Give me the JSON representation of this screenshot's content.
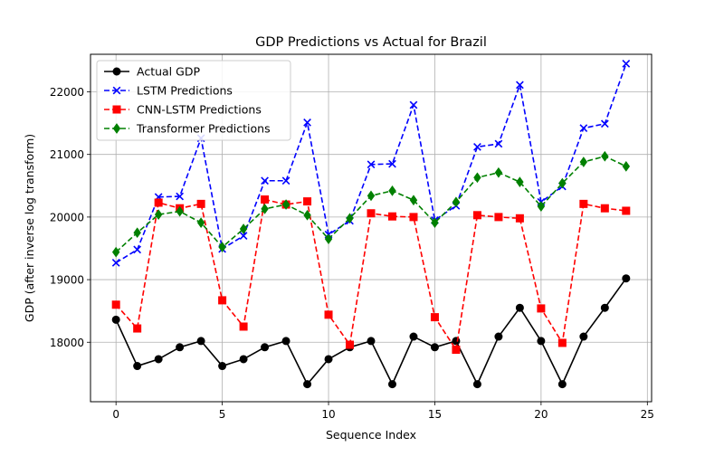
{
  "chart_data": {
    "type": "line",
    "title": "GDP Predictions vs Actual for Brazil",
    "xlabel": "Sequence Index",
    "ylabel": "GDP (after inverse log transform)",
    "xlim": [
      -1.2,
      25.2
    ],
    "ylim": [
      17050,
      22600
    ],
    "xticks": [
      0,
      5,
      10,
      15,
      20,
      25
    ],
    "yticks": [
      18000,
      19000,
      20000,
      21000,
      22000
    ],
    "grid": true,
    "legend_position": "top-left",
    "x": [
      0,
      1,
      2,
      3,
      4,
      5,
      6,
      7,
      8,
      9,
      10,
      11,
      12,
      13,
      14,
      15,
      16,
      17,
      18,
      19,
      20,
      21,
      22,
      23,
      24
    ],
    "series": [
      {
        "name": "Actual GDP",
        "color": "#000000",
        "marker": "circle",
        "line_style": "solid",
        "values": [
          18360,
          17620,
          17730,
          17920,
          18020,
          17620,
          17730,
          17920,
          18020,
          17330,
          17730,
          17920,
          18020,
          17330,
          18090,
          17920,
          18020,
          17330,
          18090,
          18550,
          18020,
          17330,
          18090,
          18550,
          19020
        ]
      },
      {
        "name": "LSTM Predictions",
        "color": "#0000ff",
        "marker": "x",
        "line_style": "dashed",
        "values": [
          19270,
          19480,
          20320,
          20330,
          21260,
          19490,
          19700,
          20580,
          20580,
          21510,
          19720,
          19940,
          20840,
          20850,
          21790,
          19950,
          20180,
          21120,
          21170,
          22110,
          20240,
          20490,
          21420,
          21490,
          22450
        ]
      },
      {
        "name": "CNN-LSTM Predictions",
        "color": "#ff0000",
        "marker": "square",
        "line_style": "dashed",
        "values": [
          18600,
          18220,
          20230,
          20140,
          20210,
          18670,
          18250,
          20280,
          20200,
          20250,
          18440,
          17960,
          20060,
          20010,
          20000,
          18400,
          17880,
          20030,
          20000,
          19980,
          18540,
          17990,
          20210,
          20140,
          20100
        ]
      },
      {
        "name": "Transformer Predictions",
        "color": "#008000",
        "marker": "diamond",
        "line_style": "dashed",
        "values": [
          19440,
          19750,
          20040,
          20090,
          19910,
          19520,
          19810,
          20130,
          20200,
          20030,
          19650,
          19980,
          20340,
          20420,
          20270,
          19910,
          20240,
          20630,
          20710,
          20560,
          20170,
          20540,
          20880,
          20970,
          20810
        ]
      }
    ]
  }
}
